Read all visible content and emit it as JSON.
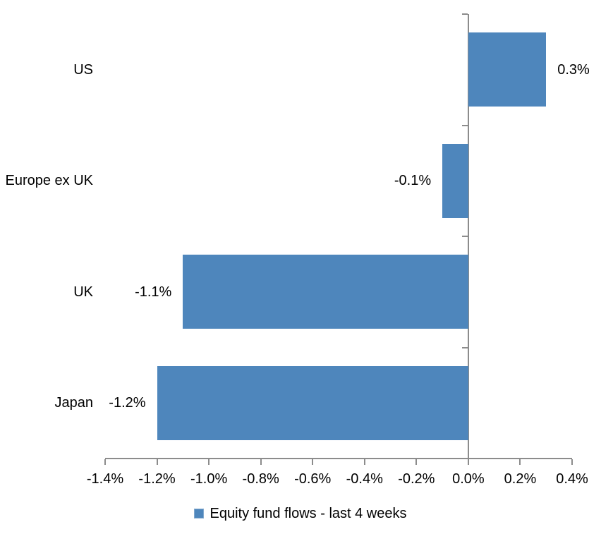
{
  "chart_data": {
    "type": "bar",
    "orientation": "horizontal",
    "title": "",
    "categories": [
      "US",
      "Europe ex UK",
      "UK",
      "Japan"
    ],
    "series": [
      {
        "name": "Equity fund flows - last 4 weeks",
        "values": [
          0.3,
          -0.1,
          -1.1,
          -1.2
        ],
        "value_labels": [
          "0.3%",
          "-0.1%",
          "-1.1%",
          "-1.2%"
        ]
      }
    ],
    "xlabel": "",
    "ylabel": "",
    "xlim": [
      -1.4,
      0.4
    ],
    "x_tick_step": 0.2,
    "x_tick_labels": [
      "-1.4%",
      "-1.2%",
      "-1.0%",
      "-0.8%",
      "-0.6%",
      "-0.4%",
      "-0.2%",
      "0.0%",
      "0.2%",
      "0.4%"
    ],
    "grid": false,
    "legend": {
      "position": "bottom",
      "entries": [
        "Equity fund flows - last 4 weeks"
      ]
    },
    "colors": {
      "bar": "#4E86BC",
      "axis": "#8C8C8C",
      "text": "#000000",
      "background": "#FFFFFF"
    }
  }
}
